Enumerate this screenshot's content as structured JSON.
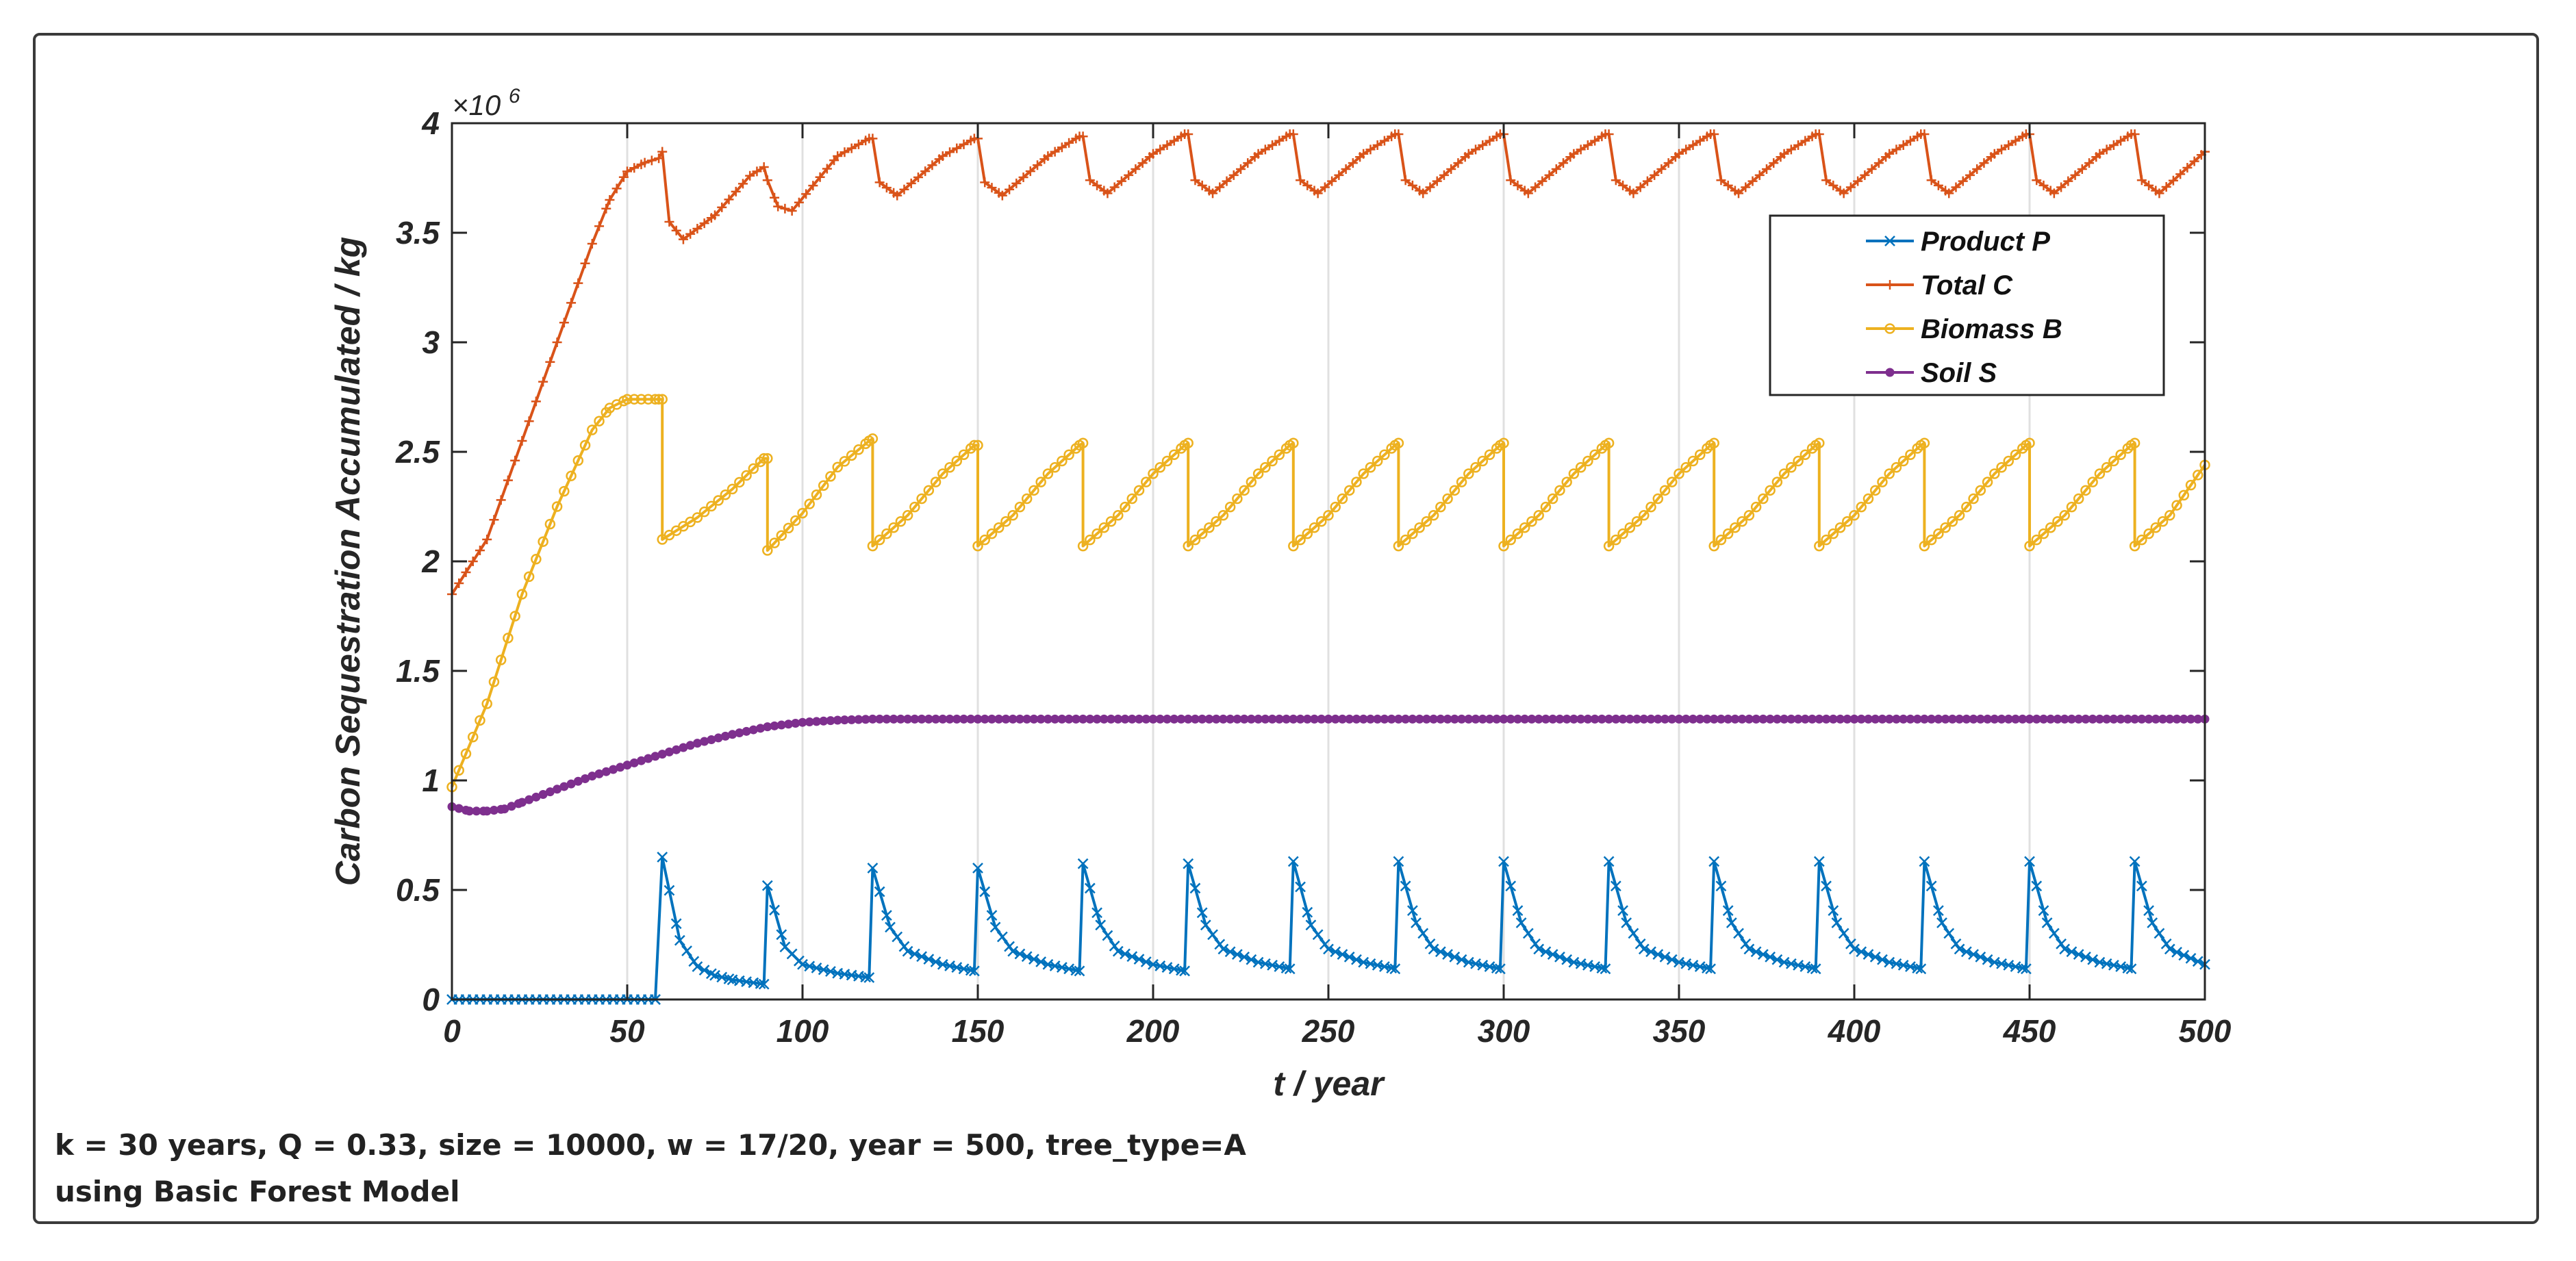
{
  "caption": {
    "line1": "k = 30 years, Q = 0.33,  size = 10000, w = 17/20, year = 500,  tree_type=A",
    "line2": "using Basic Forest Model"
  },
  "chart_data": {
    "type": "line",
    "title": "",
    "xlabel": "t / year",
    "ylabel": "Carbon Sequestration Accumulated / kg",
    "y_multiplier": "×10",
    "y_multiplier_exponent": "6",
    "xlim": [
      0,
      500
    ],
    "ylim": [
      0,
      4
    ],
    "x_ticks": [
      0,
      50,
      100,
      150,
      200,
      250,
      300,
      350,
      400,
      450,
      500
    ],
    "y_ticks": [
      0,
      0.5,
      1,
      1.5,
      2,
      2.5,
      3,
      3.5,
      4
    ],
    "y_tick_labels": [
      "0",
      "0.5",
      "1",
      "1.5",
      "2",
      "2.5",
      "3",
      "3.5",
      "4"
    ],
    "grid": "vertical",
    "legend_position": "top-right",
    "harvest_period_years": 30,
    "series": [
      {
        "name": "Product P",
        "color": "#0072BD",
        "marker": "x",
        "points": [
          [
            0,
            0
          ],
          [
            58,
            0
          ],
          [
            58,
            0.0
          ],
          [
            60,
            0.65
          ],
          [
            65,
            0.27
          ],
          [
            70,
            0.15
          ],
          [
            75,
            0.11
          ],
          [
            80,
            0.09
          ],
          [
            89,
            0.07
          ],
          [
            90,
            0.52
          ],
          [
            95,
            0.24
          ],
          [
            100,
            0.16
          ],
          [
            110,
            0.12
          ],
          [
            119,
            0.1
          ],
          [
            120,
            0.6
          ],
          [
            125,
            0.33
          ],
          [
            130,
            0.22
          ],
          [
            140,
            0.16
          ],
          [
            149,
            0.13
          ],
          [
            150,
            0.6
          ],
          [
            155,
            0.33
          ],
          [
            160,
            0.22
          ],
          [
            170,
            0.16
          ],
          [
            179,
            0.13
          ],
          [
            180,
            0.62
          ],
          [
            185,
            0.34
          ],
          [
            190,
            0.22
          ],
          [
            200,
            0.16
          ],
          [
            209,
            0.13
          ],
          [
            210,
            0.62
          ],
          [
            215,
            0.34
          ],
          [
            220,
            0.23
          ],
          [
            230,
            0.17
          ],
          [
            239,
            0.14
          ],
          [
            240,
            0.63
          ],
          [
            245,
            0.34
          ],
          [
            250,
            0.23
          ],
          [
            260,
            0.17
          ],
          [
            269,
            0.14
          ],
          [
            270,
            0.63
          ],
          [
            275,
            0.35
          ],
          [
            280,
            0.23
          ],
          [
            290,
            0.17
          ],
          [
            299,
            0.14
          ],
          [
            300,
            0.63
          ],
          [
            305,
            0.35
          ],
          [
            310,
            0.23
          ],
          [
            320,
            0.17
          ],
          [
            329,
            0.14
          ],
          [
            330,
            0.63
          ],
          [
            335,
            0.35
          ],
          [
            340,
            0.23
          ],
          [
            350,
            0.17
          ],
          [
            359,
            0.14
          ],
          [
            360,
            0.63
          ],
          [
            365,
            0.35
          ],
          [
            370,
            0.23
          ],
          [
            380,
            0.17
          ],
          [
            389,
            0.14
          ],
          [
            390,
            0.63
          ],
          [
            395,
            0.35
          ],
          [
            400,
            0.23
          ],
          [
            410,
            0.17
          ],
          [
            419,
            0.14
          ],
          [
            420,
            0.63
          ],
          [
            425,
            0.35
          ],
          [
            430,
            0.23
          ],
          [
            440,
            0.17
          ],
          [
            449,
            0.14
          ],
          [
            450,
            0.63
          ],
          [
            455,
            0.35
          ],
          [
            460,
            0.23
          ],
          [
            470,
            0.17
          ],
          [
            479,
            0.14
          ],
          [
            480,
            0.63
          ],
          [
            485,
            0.35
          ],
          [
            490,
            0.23
          ],
          [
            500,
            0.16
          ]
        ]
      },
      {
        "name": "Total C",
        "color": "#D95319",
        "marker": "+",
        "points": [
          [
            0,
            1.85
          ],
          [
            10,
            2.1
          ],
          [
            20,
            2.55
          ],
          [
            30,
            3.0
          ],
          [
            40,
            3.45
          ],
          [
            45,
            3.65
          ],
          [
            50,
            3.78
          ],
          [
            55,
            3.82
          ],
          [
            59,
            3.84
          ],
          [
            60,
            3.87
          ],
          [
            62,
            3.55
          ],
          [
            66,
            3.47
          ],
          [
            75,
            3.58
          ],
          [
            85,
            3.76
          ],
          [
            89,
            3.8
          ],
          [
            90,
            3.74
          ],
          [
            93,
            3.62
          ],
          [
            97,
            3.6
          ],
          [
            110,
            3.85
          ],
          [
            119,
            3.93
          ],
          [
            120,
            3.93
          ],
          [
            122,
            3.73
          ],
          [
            127,
            3.67
          ],
          [
            140,
            3.85
          ],
          [
            149,
            3.93
          ],
          [
            150,
            3.93
          ],
          [
            152,
            3.73
          ],
          [
            157,
            3.67
          ],
          [
            170,
            3.85
          ],
          [
            179,
            3.94
          ],
          [
            180,
            3.94
          ],
          [
            182,
            3.74
          ],
          [
            187,
            3.68
          ],
          [
            200,
            3.86
          ],
          [
            209,
            3.95
          ],
          [
            210,
            3.95
          ],
          [
            212,
            3.74
          ],
          [
            217,
            3.68
          ],
          [
            230,
            3.86
          ],
          [
            239,
            3.95
          ],
          [
            240,
            3.95
          ],
          [
            242,
            3.74
          ],
          [
            247,
            3.68
          ],
          [
            260,
            3.86
          ],
          [
            269,
            3.95
          ],
          [
            270,
            3.95
          ],
          [
            272,
            3.74
          ],
          [
            277,
            3.68
          ],
          [
            290,
            3.86
          ],
          [
            299,
            3.95
          ],
          [
            300,
            3.95
          ],
          [
            302,
            3.74
          ],
          [
            307,
            3.68
          ],
          [
            320,
            3.86
          ],
          [
            329,
            3.95
          ],
          [
            330,
            3.95
          ],
          [
            332,
            3.74
          ],
          [
            337,
            3.68
          ],
          [
            350,
            3.86
          ],
          [
            359,
            3.95
          ],
          [
            360,
            3.95
          ],
          [
            362,
            3.74
          ],
          [
            367,
            3.68
          ],
          [
            380,
            3.86
          ],
          [
            389,
            3.95
          ],
          [
            390,
            3.95
          ],
          [
            392,
            3.74
          ],
          [
            397,
            3.68
          ],
          [
            410,
            3.86
          ],
          [
            419,
            3.95
          ],
          [
            420,
            3.95
          ],
          [
            422,
            3.74
          ],
          [
            427,
            3.68
          ],
          [
            440,
            3.86
          ],
          [
            449,
            3.95
          ],
          [
            450,
            3.95
          ],
          [
            452,
            3.74
          ],
          [
            457,
            3.68
          ],
          [
            470,
            3.86
          ],
          [
            479,
            3.95
          ],
          [
            480,
            3.95
          ],
          [
            482,
            3.74
          ],
          [
            487,
            3.68
          ],
          [
            500,
            3.87
          ]
        ]
      },
      {
        "name": "Biomass B",
        "color": "#EDB120",
        "marker": "o",
        "points": [
          [
            0,
            0.97
          ],
          [
            10,
            1.35
          ],
          [
            20,
            1.85
          ],
          [
            30,
            2.25
          ],
          [
            40,
            2.6
          ],
          [
            45,
            2.7
          ],
          [
            50,
            2.74
          ],
          [
            59,
            2.74
          ],
          [
            60,
            2.74
          ],
          [
            60,
            2.1
          ],
          [
            70,
            2.2
          ],
          [
            80,
            2.33
          ],
          [
            89,
            2.47
          ],
          [
            90,
            2.47
          ],
          [
            90,
            2.05
          ],
          [
            100,
            2.22
          ],
          [
            110,
            2.43
          ],
          [
            119,
            2.55
          ],
          [
            120,
            2.56
          ],
          [
            120,
            2.07
          ],
          [
            130,
            2.21
          ],
          [
            140,
            2.4
          ],
          [
            149,
            2.53
          ],
          [
            150,
            2.53
          ],
          [
            150,
            2.07
          ],
          [
            160,
            2.21
          ],
          [
            170,
            2.4
          ],
          [
            179,
            2.53
          ],
          [
            180,
            2.54
          ],
          [
            180,
            2.07
          ],
          [
            190,
            2.21
          ],
          [
            200,
            2.4
          ],
          [
            209,
            2.53
          ],
          [
            210,
            2.54
          ],
          [
            210,
            2.07
          ],
          [
            220,
            2.21
          ],
          [
            230,
            2.4
          ],
          [
            239,
            2.53
          ],
          [
            240,
            2.54
          ],
          [
            240,
            2.07
          ],
          [
            250,
            2.21
          ],
          [
            260,
            2.4
          ],
          [
            269,
            2.53
          ],
          [
            270,
            2.54
          ],
          [
            270,
            2.07
          ],
          [
            280,
            2.21
          ],
          [
            290,
            2.4
          ],
          [
            299,
            2.53
          ],
          [
            300,
            2.54
          ],
          [
            300,
            2.07
          ],
          [
            310,
            2.21
          ],
          [
            320,
            2.4
          ],
          [
            329,
            2.53
          ],
          [
            330,
            2.54
          ],
          [
            330,
            2.07
          ],
          [
            340,
            2.21
          ],
          [
            350,
            2.4
          ],
          [
            359,
            2.53
          ],
          [
            360,
            2.54
          ],
          [
            360,
            2.07
          ],
          [
            370,
            2.21
          ],
          [
            380,
            2.4
          ],
          [
            389,
            2.53
          ],
          [
            390,
            2.54
          ],
          [
            390,
            2.07
          ],
          [
            400,
            2.21
          ],
          [
            410,
            2.4
          ],
          [
            419,
            2.53
          ],
          [
            420,
            2.54
          ],
          [
            420,
            2.07
          ],
          [
            430,
            2.21
          ],
          [
            440,
            2.4
          ],
          [
            449,
            2.53
          ],
          [
            450,
            2.54
          ],
          [
            450,
            2.07
          ],
          [
            460,
            2.21
          ],
          [
            470,
            2.4
          ],
          [
            479,
            2.53
          ],
          [
            480,
            2.54
          ],
          [
            480,
            2.07
          ],
          [
            490,
            2.21
          ],
          [
            500,
            2.44
          ]
        ]
      },
      {
        "name": "Soil S",
        "color": "#7E2F8E",
        "marker": "dot",
        "points": [
          [
            0,
            0.88
          ],
          [
            5,
            0.86
          ],
          [
            10,
            0.86
          ],
          [
            15,
            0.87
          ],
          [
            20,
            0.9
          ],
          [
            30,
            0.96
          ],
          [
            40,
            1.02
          ],
          [
            50,
            1.07
          ],
          [
            60,
            1.12
          ],
          [
            70,
            1.17
          ],
          [
            80,
            1.21
          ],
          [
            90,
            1.245
          ],
          [
            100,
            1.265
          ],
          [
            110,
            1.275
          ],
          [
            120,
            1.28
          ],
          [
            150,
            1.28
          ],
          [
            200,
            1.28
          ],
          [
            250,
            1.28
          ],
          [
            300,
            1.28
          ],
          [
            350,
            1.28
          ],
          [
            400,
            1.28
          ],
          [
            450,
            1.28
          ],
          [
            500,
            1.28
          ]
        ]
      }
    ]
  }
}
